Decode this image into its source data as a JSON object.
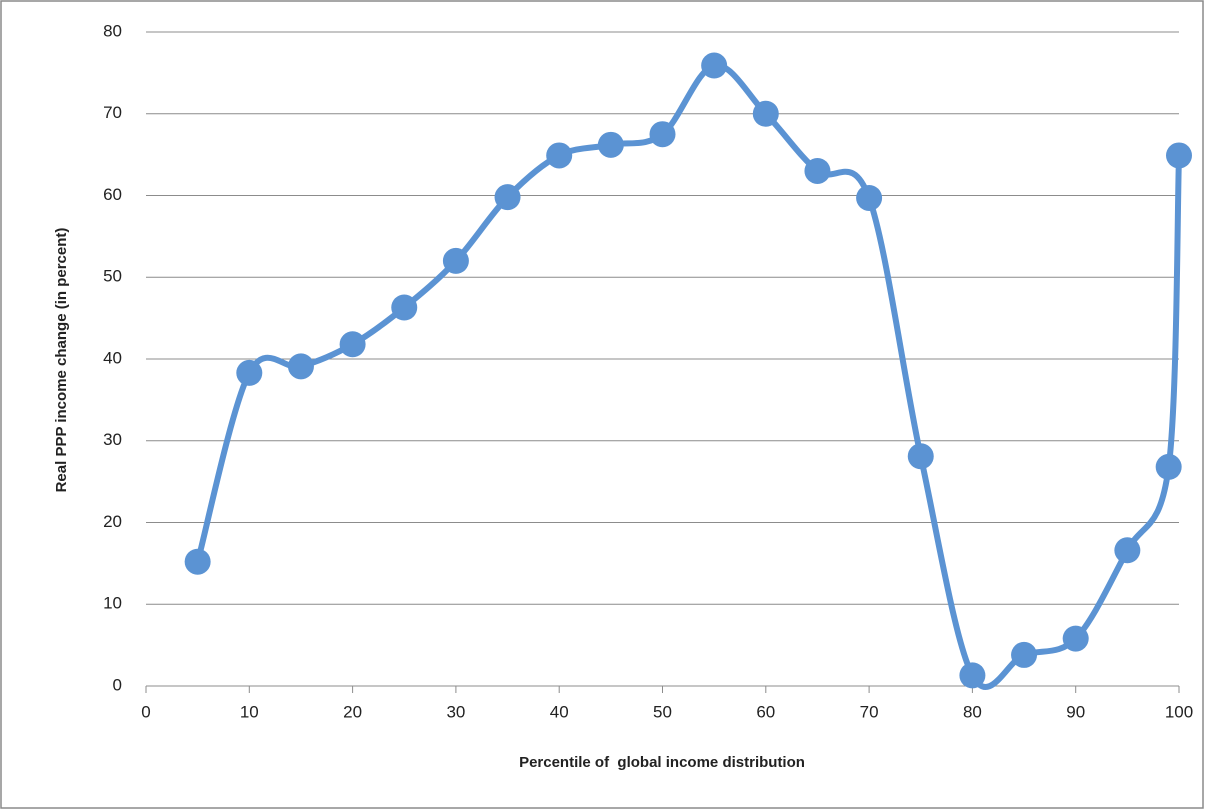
{
  "chart_data": {
    "type": "line",
    "x": [
      5,
      10,
      15,
      20,
      25,
      30,
      35,
      40,
      45,
      50,
      55,
      60,
      65,
      70,
      75,
      80,
      85,
      90,
      95,
      99,
      100
    ],
    "series": [
      {
        "color": "#5b93d3",
        "values": [
          15.2,
          38.3,
          39.1,
          41.8,
          46.3,
          52,
          59.8,
          64.9,
          66.2,
          67.5,
          75.9,
          70,
          63,
          59.7,
          28.1,
          1.3,
          3.8,
          5.8,
          16.6,
          26.8,
          64.9
        ]
      }
    ],
    "xlabel": "Percentile of  global income distribution",
    "ylabel": "Real PPP income change (in percent)",
    "xlim": [
      0,
      100
    ],
    "ylim": [
      0,
      80
    ],
    "xticks": [
      0,
      10,
      20,
      30,
      40,
      50,
      60,
      70,
      80,
      90,
      100
    ],
    "yticks": [
      0,
      10,
      20,
      30,
      40,
      50,
      60,
      70,
      80
    ],
    "grid": true,
    "smooth": true,
    "markers": true
  }
}
